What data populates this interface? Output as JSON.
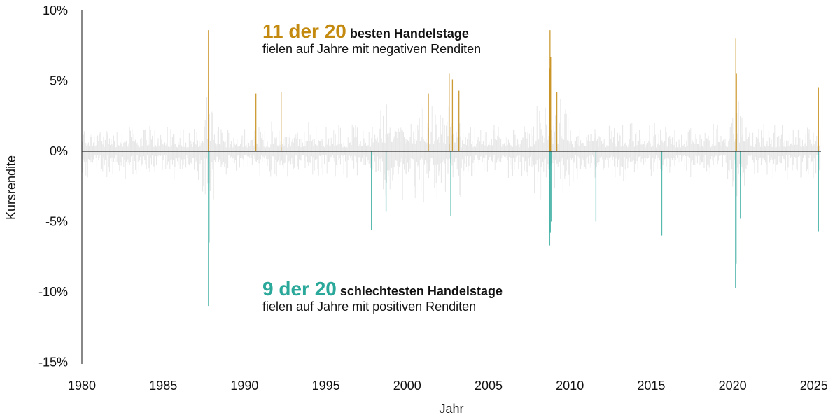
{
  "chart_data": {
    "type": "bar",
    "xlabel": "Jahr",
    "ylabel": "Kursrendite",
    "xlim": [
      1980,
      2025.5
    ],
    "ylim": [
      -15,
      10
    ],
    "x_ticks": [
      "1980",
      "1985",
      "1990",
      "1995",
      "2000",
      "2005",
      "2010",
      "2015",
      "2020",
      "2025"
    ],
    "y_ticks": [
      {
        "v": 10,
        "label": "10%"
      },
      {
        "v": 5,
        "label": "5%"
      },
      {
        "v": 0,
        "label": "0%"
      },
      {
        "v": -5,
        "label": "-5%"
      },
      {
        "v": -10,
        "label": "-10%"
      },
      {
        "v": -15,
        "label": "-15%"
      }
    ],
    "colors": {
      "best": "#c48a10",
      "worst": "#2aa89a",
      "noise": "#e6e6e6",
      "zero": "#333333"
    },
    "best_days": [
      {
        "year": 1987.78,
        "value": 8.6
      },
      {
        "year": 1987.8,
        "value": 4.3
      },
      {
        "year": 1990.7,
        "value": 4.1
      },
      {
        "year": 1992.25,
        "value": 4.2
      },
      {
        "year": 2001.3,
        "value": 4.1
      },
      {
        "year": 2002.58,
        "value": 5.5
      },
      {
        "year": 2002.78,
        "value": 5.1
      },
      {
        "year": 2003.18,
        "value": 4.3
      },
      {
        "year": 2008.78,
        "value": 8.6
      },
      {
        "year": 2008.82,
        "value": 6.7
      },
      {
        "year": 2008.74,
        "value": 5.9
      },
      {
        "year": 2009.2,
        "value": 4.2
      },
      {
        "year": 2020.2,
        "value": 8.0
      },
      {
        "year": 2020.24,
        "value": 5.5
      },
      {
        "year": 2025.28,
        "value": 4.5
      }
    ],
    "worst_days": [
      {
        "year": 1987.78,
        "value": -11.0
      },
      {
        "year": 1987.82,
        "value": -6.5
      },
      {
        "year": 1997.8,
        "value": -5.6
      },
      {
        "year": 1998.7,
        "value": -4.3
      },
      {
        "year": 2002.68,
        "value": -4.6
      },
      {
        "year": 2008.76,
        "value": -6.7
      },
      {
        "year": 2008.8,
        "value": -5.8
      },
      {
        "year": 2008.86,
        "value": -5.0
      },
      {
        "year": 2011.6,
        "value": -5.0
      },
      {
        "year": 2015.65,
        "value": -6.0
      },
      {
        "year": 2020.18,
        "value": -9.7
      },
      {
        "year": 2020.22,
        "value": -8.0
      },
      {
        "year": 2020.48,
        "value": -4.8
      },
      {
        "year": 2025.28,
        "value": -5.7
      }
    ]
  },
  "annotations": {
    "best": {
      "highlight": "11 der 20",
      "bold": "besten Handelstage",
      "line2": "fielen auf Jahre mit negativen Renditen"
    },
    "worst": {
      "highlight": "9 der 20",
      "bold": "schlechtesten Handelstage",
      "line2": "fielen auf Jahre mit positiven Renditen"
    }
  }
}
